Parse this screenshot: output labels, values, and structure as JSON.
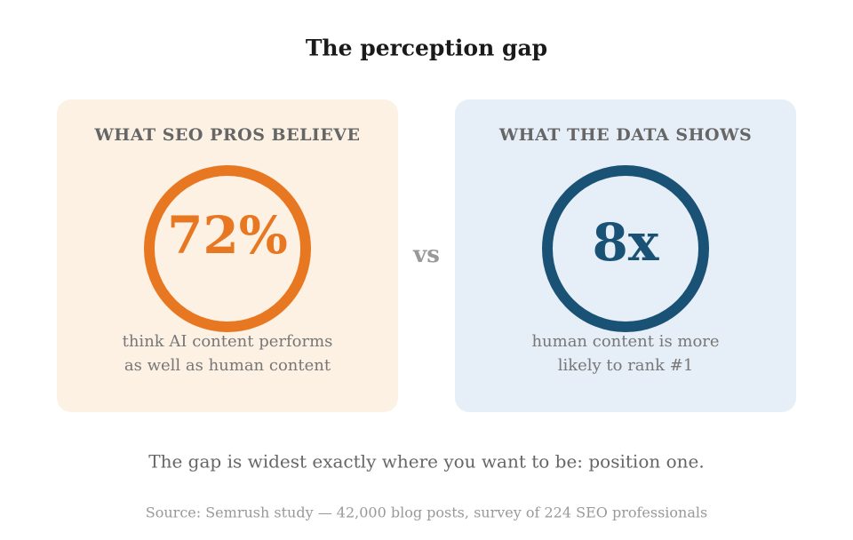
{
  "title": "The perception gap",
  "left_card": {
    "heading": "WHAT SEO PROS BELIEVE",
    "stat": "72%",
    "caption": [
      "think AI content performs",
      "as well as human content"
    ]
  },
  "vs": "vs",
  "right_card": {
    "heading": "WHAT THE DATA SHOWS",
    "stat": "8x",
    "caption": [
      "human content is more",
      "likely to rank #1"
    ]
  },
  "footer": "The gap is widest exactly where you want to be: position one.",
  "source": "Source: Semrush study — 42,000 blog posts, survey of 224 SEO professionals"
}
